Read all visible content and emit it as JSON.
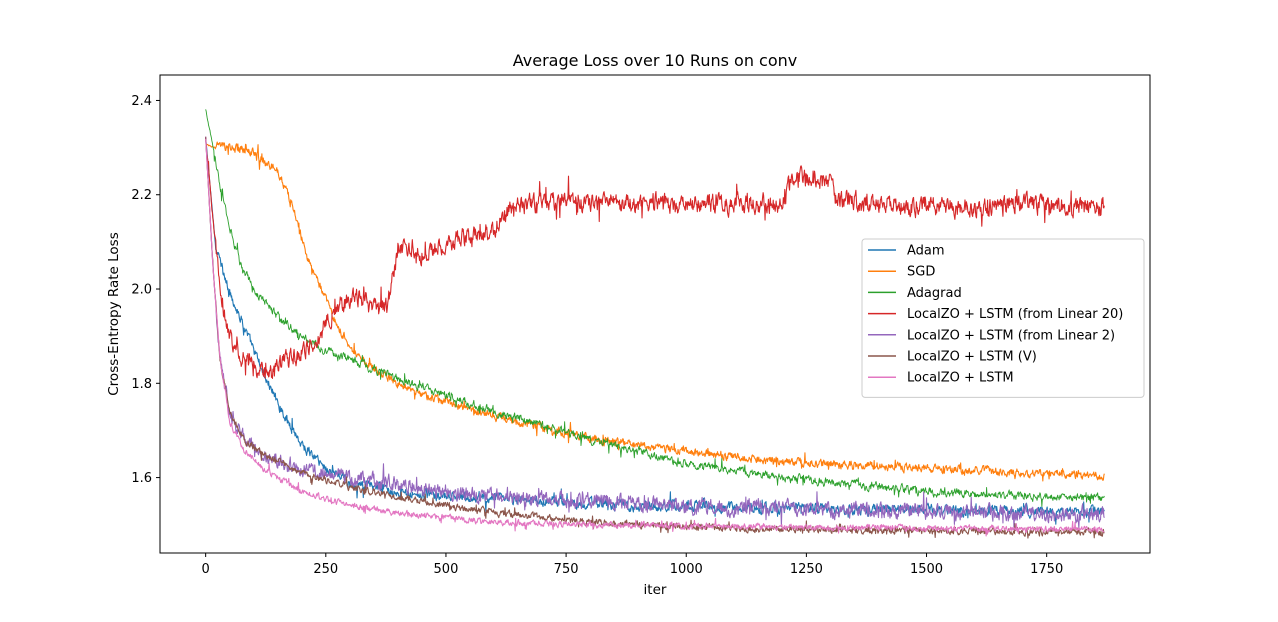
{
  "chart_data": {
    "type": "line",
    "title": "Average Loss over 10 Runs on conv",
    "xlabel": "iter",
    "ylabel": "Cross-Entropy Rate Loss",
    "xlim": [
      -95,
      1965
    ],
    "ylim": [
      1.44,
      2.454
    ],
    "xticks": [
      0,
      250,
      500,
      750,
      1000,
      1250,
      1500,
      1750
    ],
    "yticks": [
      1.6,
      1.8,
      2.0,
      2.2,
      2.4
    ],
    "ytick_labels": [
      "1.6",
      "1.8",
      "2.0",
      "2.2",
      "2.4"
    ],
    "grid": false,
    "legend_position": "center-right",
    "series": [
      {
        "name": "Adam",
        "color": "#1f77b4",
        "noise": 0.012,
        "x": [
          0,
          20,
          40,
          60,
          80,
          100,
          130,
          160,
          200,
          250,
          300,
          400,
          500,
          600,
          700,
          800,
          900,
          1000,
          1200,
          1400,
          1600,
          1870
        ],
        "y": [
          2.32,
          2.1,
          2.02,
          1.97,
          1.92,
          1.87,
          1.8,
          1.74,
          1.67,
          1.62,
          1.59,
          1.57,
          1.56,
          1.555,
          1.55,
          1.545,
          1.54,
          1.54,
          1.535,
          1.532,
          1.53,
          1.528
        ]
      },
      {
        "name": "SGD",
        "color": "#ff7f0e",
        "noise": 0.01,
        "x": [
          0,
          50,
          100,
          150,
          180,
          210,
          240,
          270,
          300,
          350,
          400,
          450,
          500,
          600,
          700,
          800,
          900,
          1000,
          1100,
          1200,
          1300,
          1400,
          1500,
          1600,
          1700,
          1870
        ],
        "y": [
          2.305,
          2.3,
          2.29,
          2.25,
          2.18,
          2.07,
          2.0,
          1.93,
          1.88,
          1.83,
          1.8,
          1.775,
          1.76,
          1.73,
          1.705,
          1.685,
          1.67,
          1.655,
          1.645,
          1.635,
          1.63,
          1.625,
          1.62,
          1.615,
          1.61,
          1.605
        ]
      },
      {
        "name": "Adagrad",
        "color": "#2ca02c",
        "noise": 0.01,
        "x": [
          0,
          10,
          30,
          50,
          70,
          100,
          150,
          200,
          250,
          300,
          400,
          500,
          600,
          700,
          800,
          900,
          1000,
          1100,
          1200,
          1300,
          1400,
          1500,
          1600,
          1700,
          1870
        ],
        "y": [
          2.38,
          2.33,
          2.22,
          2.13,
          2.06,
          2.0,
          1.94,
          1.9,
          1.87,
          1.85,
          1.81,
          1.775,
          1.74,
          1.71,
          1.68,
          1.655,
          1.63,
          1.615,
          1.6,
          1.59,
          1.58,
          1.57,
          1.565,
          1.56,
          1.555
        ]
      },
      {
        "name": "LocalZO + LSTM (from Linear 20)",
        "color": "#d62728",
        "noise": 0.022,
        "x": [
          0,
          15,
          30,
          50,
          80,
          110,
          140,
          160,
          200,
          230,
          250,
          280,
          320,
          360,
          380,
          400,
          430,
          460,
          500,
          540,
          580,
          600,
          630,
          680,
          750,
          800,
          900,
          1000,
          1100,
          1200,
          1220,
          1250,
          1300,
          1310,
          1400,
          1500,
          1600,
          1700,
          1800,
          1870
        ],
        "y": [
          2.32,
          2.15,
          2.0,
          1.9,
          1.85,
          1.83,
          1.82,
          1.84,
          1.87,
          1.89,
          1.93,
          1.97,
          1.98,
          1.95,
          1.97,
          2.08,
          2.09,
          2.07,
          2.1,
          2.11,
          2.12,
          2.13,
          2.17,
          2.18,
          2.19,
          2.18,
          2.18,
          2.18,
          2.18,
          2.18,
          2.235,
          2.235,
          2.225,
          2.19,
          2.18,
          2.175,
          2.17,
          2.18,
          2.175,
          2.175
        ]
      },
      {
        "name": "LocalZO + LSTM (from Linear 2)",
        "color": "#9467bd",
        "noise": 0.018,
        "x": [
          0,
          15,
          30,
          50,
          80,
          120,
          200,
          300,
          400,
          500,
          600,
          800,
          1000,
          1200,
          1400,
          1600,
          1870
        ],
        "y": [
          2.32,
          2.05,
          1.85,
          1.74,
          1.68,
          1.65,
          1.62,
          1.6,
          1.585,
          1.57,
          1.56,
          1.55,
          1.54,
          1.535,
          1.53,
          1.525,
          1.52
        ]
      },
      {
        "name": "LocalZO + LSTM (V)",
        "color": "#8c564b",
        "noise": 0.008,
        "x": [
          0,
          15,
          30,
          50,
          80,
          120,
          200,
          300,
          400,
          500,
          600,
          700,
          800,
          1000,
          1200,
          1400,
          1600,
          1870
        ],
        "y": [
          2.32,
          2.05,
          1.85,
          1.74,
          1.68,
          1.65,
          1.61,
          1.58,
          1.56,
          1.54,
          1.525,
          1.515,
          1.505,
          1.495,
          1.49,
          1.488,
          1.486,
          1.485
        ]
      },
      {
        "name": "LocalZO + LSTM",
        "color": "#e377c2",
        "noise": 0.007,
        "x": [
          0,
          15,
          30,
          50,
          80,
          120,
          200,
          300,
          400,
          500,
          600,
          800,
          1000,
          1200,
          1400,
          1600,
          1870
        ],
        "y": [
          2.32,
          2.05,
          1.85,
          1.72,
          1.66,
          1.62,
          1.57,
          1.54,
          1.525,
          1.515,
          1.505,
          1.5,
          1.498,
          1.495,
          1.493,
          1.492,
          1.49
        ]
      }
    ]
  }
}
